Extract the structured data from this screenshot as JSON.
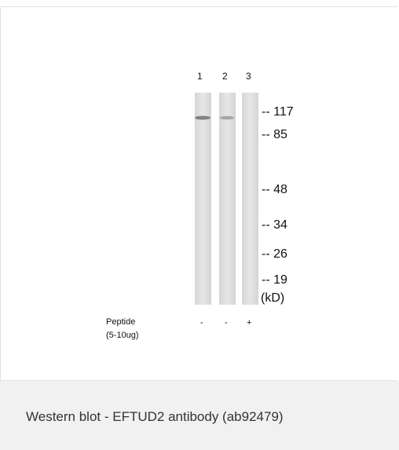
{
  "figure": {
    "lanes": [
      "1",
      "2",
      "3"
    ],
    "markers": [
      "-- 117",
      "-- 85",
      "-- 48",
      "-- 34",
      "-- 26",
      "-- 19",
      "(kD)"
    ],
    "treatment": {
      "label": "Peptide",
      "sublabel": "(5-10ug)",
      "states": [
        "-",
        "-",
        "+"
      ]
    }
  },
  "caption": "Western blot - EFTUD2 antibody (ab92479)"
}
